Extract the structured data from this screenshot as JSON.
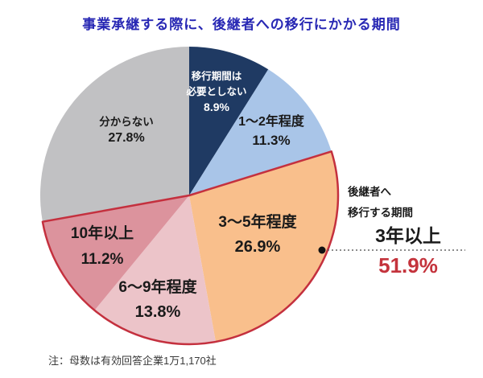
{
  "title": "事業承継する際に、後継者への移行にかかる期間",
  "note": "注：母数は有効回答企業1万1,170社",
  "annotation": {
    "line1": "後継者へ",
    "line2": "移行する期間",
    "headline": "3年以上",
    "value": "51.9%",
    "value_color": "#c4333c"
  },
  "chart_data": {
    "type": "pie",
    "title": "事業承継する際に、後継者への移行にかかる期間",
    "direction": "clockwise",
    "start_angle_deg": 0,
    "legend_position": "none",
    "slices": [
      {
        "label": "移行期間は必要としない",
        "label_lines": [
          "移行期間は",
          "必要としない"
        ],
        "value": 8.9,
        "pct_label": "8.9%",
        "color": "#1f3a63",
        "text_color": "#ffffff"
      },
      {
        "label": "1〜2年程度",
        "value": 11.3,
        "pct_label": "11.3%",
        "color": "#a9c5e8",
        "text_color": "#1a1a1a"
      },
      {
        "label": "3〜5年程度",
        "value": 26.9,
        "pct_label": "26.9%",
        "color": "#f9bf8c",
        "text_color": "#1a1a1a"
      },
      {
        "label": "6〜9年程度",
        "value": 13.8,
        "pct_label": "13.8%",
        "color": "#ecc4c9",
        "text_color": "#1a1a1a"
      },
      {
        "label": "10年以上",
        "value": 11.2,
        "pct_label": "11.2%",
        "color": "#dc939d",
        "text_color": "#1a1a1a"
      },
      {
        "label": "分からない",
        "value": 27.8,
        "pct_label": "27.8%",
        "color": "#c1c1c3",
        "text_color": "#1a1a1a"
      }
    ],
    "highlight_group": {
      "label": "後継者へ移行する期間 3年以上",
      "total": 51.9,
      "slice_indices": [
        2,
        3,
        4
      ],
      "outline_color": "#c4303e"
    },
    "colors": {
      "title_blue": "#2828b4",
      "callout_red": "#c4333c",
      "leader_line": "#666666"
    }
  }
}
